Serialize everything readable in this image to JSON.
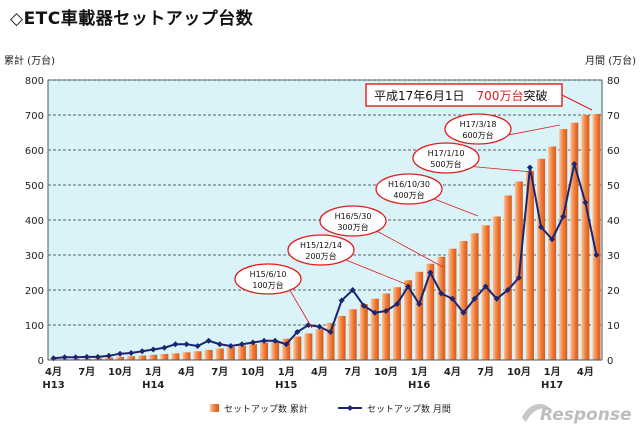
{
  "page_title": "◇ETC車載器セットアップ台数",
  "watermark_text": "Response",
  "colors": {
    "plot_bg": "#d9f3f9",
    "bar": "#f07a35",
    "bar_light": "#fbc29a",
    "line": "#1c2570",
    "callout_border": "#e21b1b",
    "callout_accent": "#e21b1b",
    "grid": "#333333"
  },
  "chart_data": {
    "type": "bar+line",
    "title": "◇ETC車載器セットアップ台数",
    "left_axis_label": "累計 (万台)",
    "right_axis_label": "月間 (万台)",
    "ylim_left": [
      0,
      800
    ],
    "ylim_right": [
      0,
      80
    ],
    "left_ticks": [
      "0",
      "100",
      "200",
      "300",
      "400",
      "500",
      "600",
      "700",
      "800"
    ],
    "right_ticks": [
      "0",
      "10",
      "20",
      "30",
      "40",
      "50",
      "60",
      "70",
      "80"
    ],
    "grid": "dashed-horizontal",
    "month_labels": [
      {
        "index": 0,
        "text": "4月"
      },
      {
        "index": 3,
        "text": "7月"
      },
      {
        "index": 6,
        "text": "10月"
      },
      {
        "index": 9,
        "text": "1月"
      },
      {
        "index": 12,
        "text": "4月"
      },
      {
        "index": 15,
        "text": "7月"
      },
      {
        "index": 18,
        "text": "10月"
      },
      {
        "index": 21,
        "text": "1月"
      },
      {
        "index": 24,
        "text": "4月"
      },
      {
        "index": 27,
        "text": "7月"
      },
      {
        "index": 30,
        "text": "10月"
      },
      {
        "index": 33,
        "text": "1月"
      },
      {
        "index": 36,
        "text": "4月"
      },
      {
        "index": 39,
        "text": "7月"
      },
      {
        "index": 42,
        "text": "10月"
      },
      {
        "index": 45,
        "text": "1月"
      },
      {
        "index": 48,
        "text": "4月"
      }
    ],
    "year_labels": [
      {
        "index": 0,
        "text": "H13"
      },
      {
        "index": 9,
        "text": "H14"
      },
      {
        "index": 21,
        "text": "H15"
      },
      {
        "index": 33,
        "text": "H16"
      },
      {
        "index": 45,
        "text": "H17"
      }
    ],
    "series": [
      {
        "name": "セットアップ数 累計",
        "kind": "bar",
        "axis": "left",
        "values": [
          1,
          2,
          3,
          4,
          5,
          7,
          9,
          11,
          13,
          15,
          17,
          19,
          22,
          25,
          29,
          33,
          37,
          41,
          45,
          50,
          55,
          61,
          67,
          76,
          88,
          106,
          126,
          145,
          160,
          175,
          190,
          208,
          228,
          252,
          275,
          295,
          318,
          340,
          362,
          385,
          410,
          470,
          510,
          540,
          575,
          610,
          660,
          678,
          700,
          703
        ]
      },
      {
        "name": "セットアップ数 月間",
        "kind": "line",
        "axis": "right",
        "values": [
          0.5,
          0.8,
          0.8,
          0.9,
          0.9,
          1.2,
          1.8,
          2,
          2.5,
          3,
          3.5,
          4.5,
          4.5,
          4,
          5.5,
          4.5,
          4,
          4.5,
          5,
          5.5,
          5.5,
          4.5,
          8,
          10,
          9.5,
          8,
          17,
          20,
          15.5,
          13.5,
          14,
          16,
          21,
          16,
          25,
          19,
          17.5,
          13.5,
          17.5,
          21,
          17.5,
          20,
          23.5,
          55,
          38,
          34.5,
          41,
          56,
          45,
          30
        ]
      }
    ],
    "legend": {
      "position": "bottom-center",
      "entries": [
        "セットアップ数 累計",
        "セットアップ数 月間"
      ]
    },
    "annotations": [
      {
        "date": "H15/6/10",
        "amount": "100万台",
        "index": 25
      },
      {
        "date": "H15/12/14",
        "amount": "200万台",
        "index": 31
      },
      {
        "date": "H16/5/30",
        "amount": "300万台",
        "index": 36
      },
      {
        "date": "H16/10/30",
        "amount": "400万台",
        "index": 40
      },
      {
        "date": "H17/1/10",
        "amount": "500万台",
        "index": 43
      },
      {
        "date": "H17/3/18",
        "amount": "600万台",
        "index": 45
      }
    ],
    "highlight": {
      "text_date": "平成17年6月1日",
      "text_amount": "700万台",
      "text_suffix": "突破"
    }
  }
}
